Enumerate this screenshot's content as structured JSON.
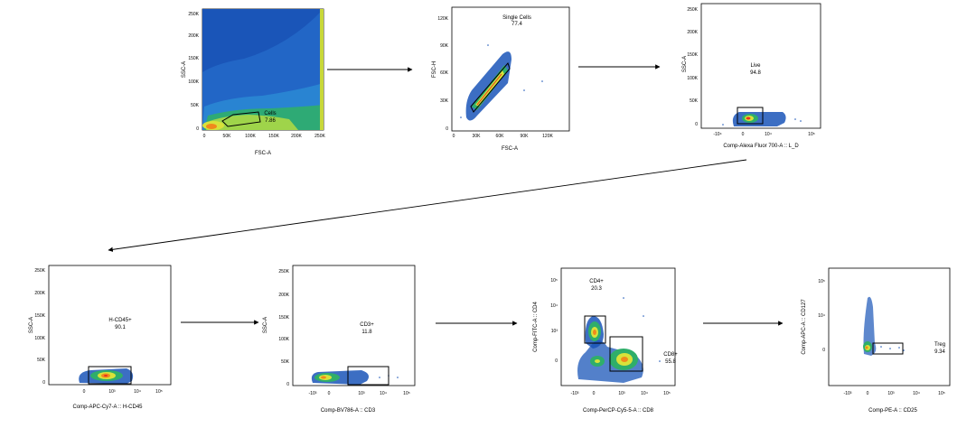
{
  "plots": [
    {
      "id": "p1",
      "x_axis_label": "FSC-A",
      "y_axis_label": "SSC-A",
      "x_ticks": [
        "0",
        "50K",
        "100K",
        "150K",
        "200K",
        "250K"
      ],
      "y_ticks": [
        "0",
        "50K",
        "100K",
        "150K",
        "200K",
        "250K"
      ],
      "gate": {
        "name": "Cells",
        "value": "7.86"
      }
    },
    {
      "id": "p2",
      "x_axis_label": "FSC-A",
      "y_axis_label": "FSC-H",
      "x_ticks": [
        "0",
        "30K",
        "60K",
        "90K",
        "120K"
      ],
      "y_ticks": [
        "0",
        "30K",
        "60K",
        "90K",
        "120K"
      ],
      "gate": {
        "name": "Single Cells",
        "value": "77.4"
      }
    },
    {
      "id": "p3",
      "x_axis_label": "Comp-Alexa Fluor 700-A :: L_D",
      "y_axis_label": "SSC-A",
      "x_ticks": [
        "-10⁴",
        "0",
        "10⁴",
        "10⁵"
      ],
      "y_ticks": [
        "0",
        "50K",
        "100K",
        "150K",
        "200K",
        "250K"
      ],
      "gate": {
        "name": "Live",
        "value": "94.8"
      }
    },
    {
      "id": "p4",
      "x_axis_label": "Comp-APC-Cy7-A :: H-CD45",
      "y_axis_label": "SSC-A",
      "x_ticks": [
        "0",
        "10³",
        "10⁴",
        "10⁵"
      ],
      "y_ticks": [
        "0",
        "50K",
        "100K",
        "150K",
        "200K",
        "250K"
      ],
      "gate": {
        "name": "H-CD45+",
        "value": "90.1"
      }
    },
    {
      "id": "p5",
      "x_axis_label": "Comp-BV786-A :: CD3",
      "y_axis_label": "SSC-A",
      "x_ticks": [
        "-10³",
        "0",
        "10³",
        "10⁴",
        "10⁵"
      ],
      "y_ticks": [
        "0",
        "50K",
        "100K",
        "150K",
        "200K",
        "250K"
      ],
      "gate": {
        "name": "CD3+",
        "value": "11.8"
      }
    },
    {
      "id": "p6",
      "x_axis_label": "Comp-PerCP-Cy5-5-A :: CD8",
      "y_axis_label": "Comp-FITC-A :: CD4",
      "x_ticks": [
        "-10³",
        "0",
        "10³",
        "10⁴",
        "10⁵"
      ],
      "y_ticks": [
        "0",
        "10³",
        "10⁴",
        "10⁵"
      ],
      "gate": {
        "name": "CD4+",
        "value": "20.3"
      },
      "gate2": {
        "name": "CD8+",
        "value": "55.8"
      }
    },
    {
      "id": "p7",
      "x_axis_label": "Comp-PE-A :: CD25",
      "y_axis_label": "Comp-APC-A :: CD127",
      "x_ticks": [
        "-10³",
        "0",
        "10³",
        "10⁴",
        "10⁵"
      ],
      "y_ticks": [
        "0",
        "10⁴",
        "10⁵"
      ],
      "gate": {
        "name": "Treg",
        "value": "9.34"
      }
    }
  ],
  "colors": {
    "background_blue": "#1a55b8",
    "density_mid": "#2fae6a",
    "density_high": "#d8e23a",
    "density_peak": "#f08a1c",
    "density_max": "#e8321e",
    "gate_line": "#000000"
  }
}
